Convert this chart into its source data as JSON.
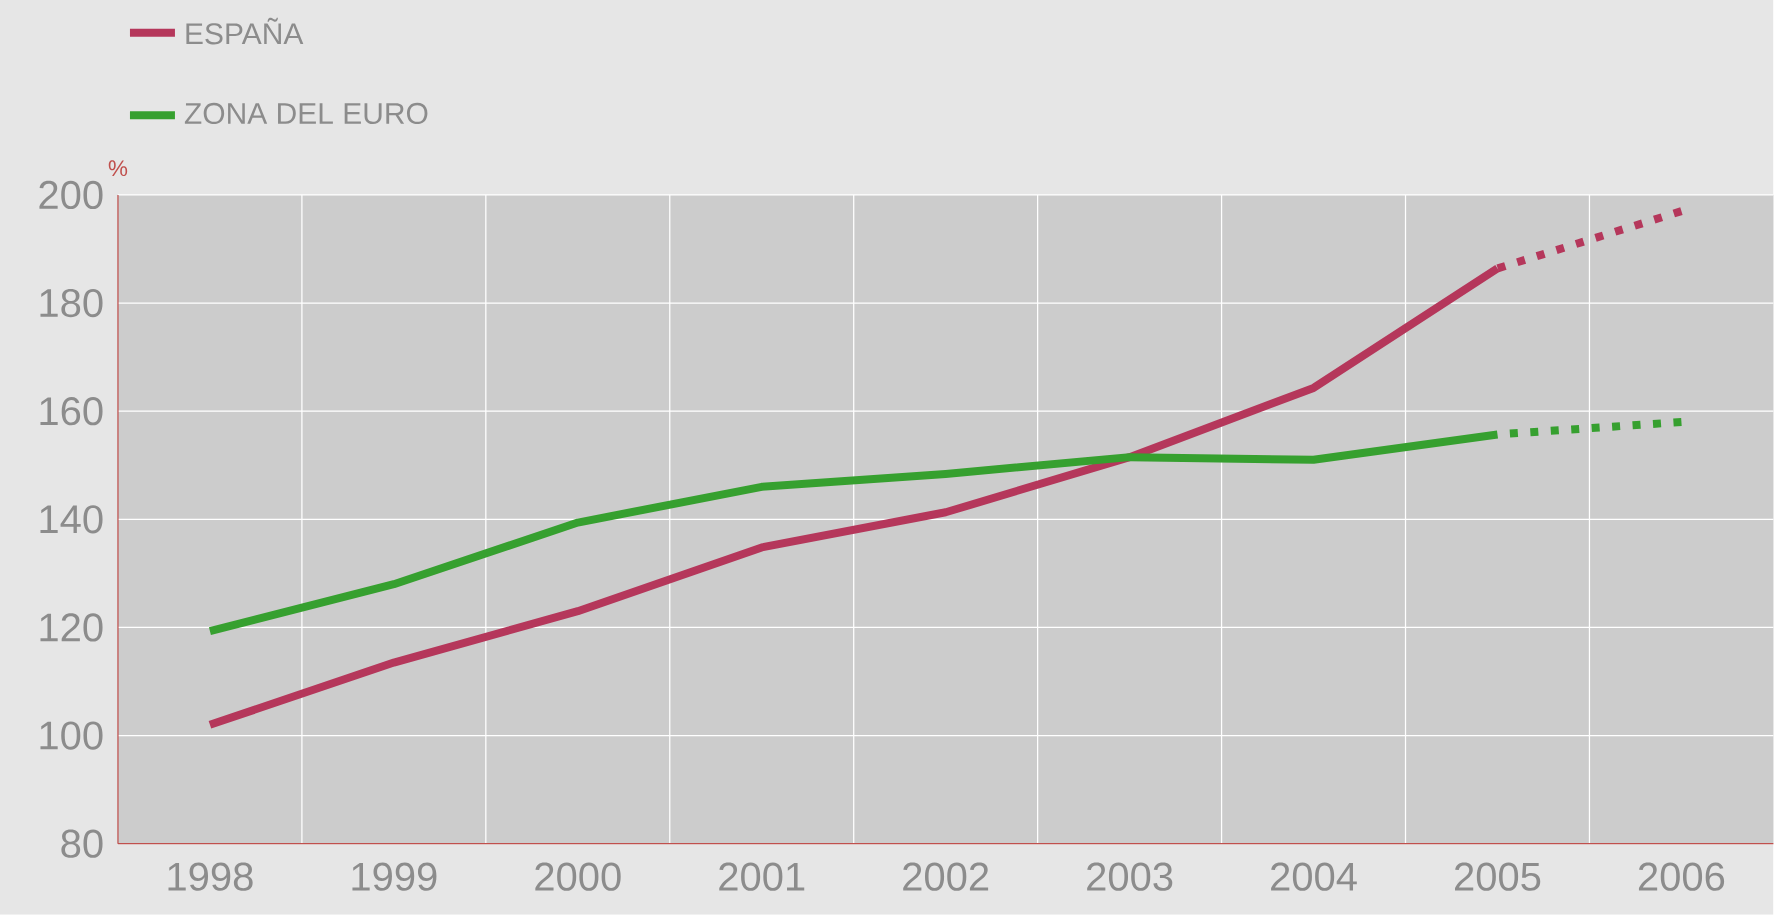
{
  "chart_data": {
    "type": "line",
    "ylabel": "%",
    "categories": [
      "1998",
      "1999",
      "2000",
      "2001",
      "2002",
      "2003",
      "2004",
      "2005",
      "2006"
    ],
    "series": [
      {
        "name": "ESPAÑA",
        "color": "#b5375b",
        "line_style": "solid",
        "values": [
          102,
          113.5,
          123,
          134.8,
          141.3,
          151.5,
          164.3,
          186.4,
          null
        ]
      },
      {
        "name": "ZONA DEL EURO",
        "color": "#36a02f",
        "line_style": "solid",
        "values": [
          119.3,
          128,
          139.4,
          146,
          148.4,
          151.5,
          151,
          155.7,
          null
        ]
      },
      {
        "color": "#b5375b",
        "line_style": "dotted",
        "values": [
          null,
          null,
          null,
          null,
          null,
          null,
          null,
          186.4,
          197
        ]
      },
      {
        "color": "#36a02f",
        "line_style": "dotted",
        "values": [
          null,
          null,
          null,
          null,
          null,
          null,
          null,
          155.7,
          158
        ]
      }
    ],
    "ylim": [
      80,
      200
    ],
    "yticks": [
      80,
      100,
      120,
      140,
      160,
      180,
      200
    ],
    "grid": true,
    "legend": "top left",
    "marker": "none"
  }
}
